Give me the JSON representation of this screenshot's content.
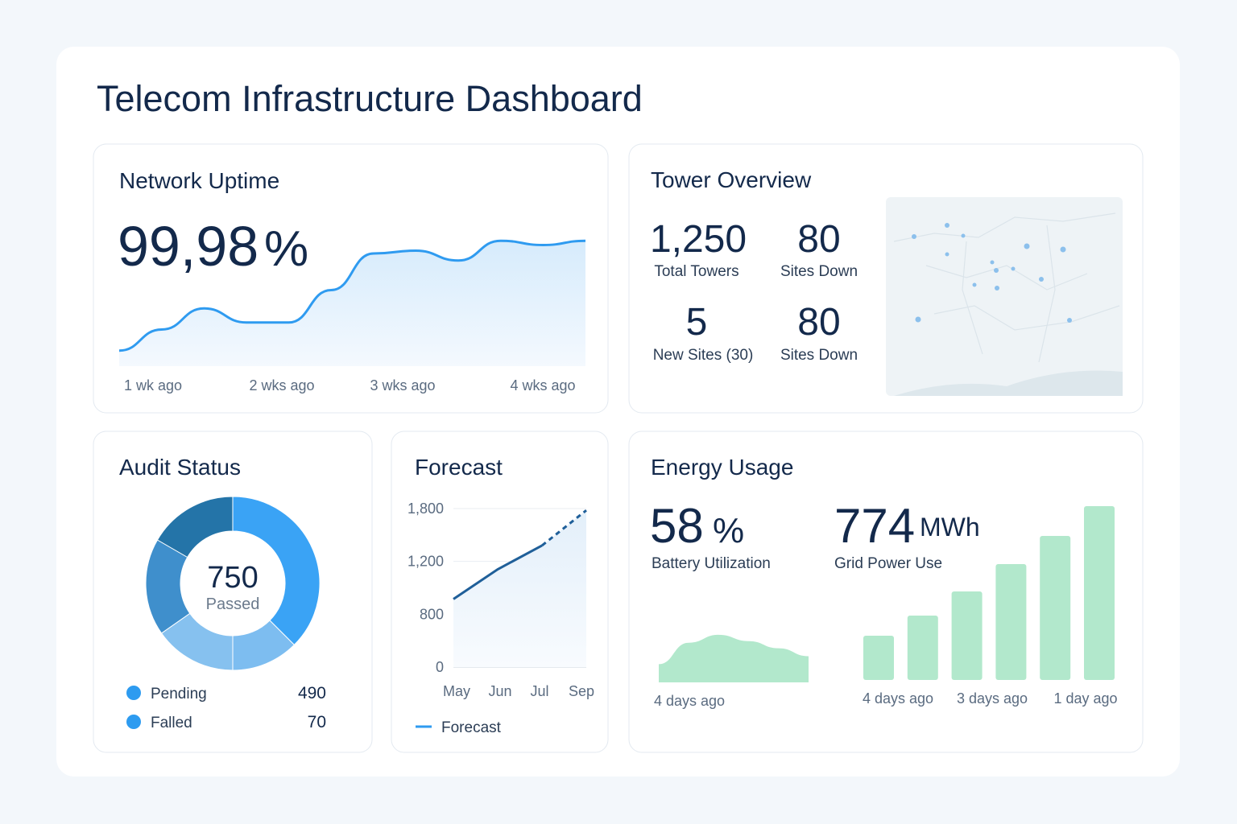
{
  "title": "Telecom Infrastructure Dashboard",
  "uptime": {
    "title": "Network Uptime",
    "value": "99,98",
    "unit": "%",
    "chart": {
      "type": "area",
      "values": [
        11,
        26,
        41,
        31,
        31,
        54,
        80,
        82,
        75,
        89,
        86,
        89
      ],
      "ylim": [
        0,
        100
      ],
      "x_labels": [
        "1 wk ago",
        "2 wks ago",
        "3 wks ago",
        "4 wks ago"
      ],
      "color": "#2f9bf0"
    }
  },
  "towers": {
    "title": "Tower Overview",
    "stats": [
      {
        "value": "1,250",
        "label": "Total Towers"
      },
      {
        "value": "80",
        "label": "Sites Down"
      },
      {
        "value": "5",
        "label": "New Sites (30)"
      },
      {
        "value": "80",
        "label": "Sites Down"
      }
    ]
  },
  "audit": {
    "title": "Audit Status",
    "center_value": "750",
    "center_label": "Passed",
    "legend": [
      {
        "label": "Pending",
        "value": "490"
      },
      {
        "label": "Falled",
        "value": "70"
      }
    ]
  },
  "forecast": {
    "title": "Forecast",
    "chart": {
      "type": "line",
      "categories": [
        "May",
        "Jun",
        "Jul",
        "Sep"
      ],
      "values": [
        915,
        1140,
        1380,
        1780
      ],
      "forecast_from": 2,
      "yticks": [
        0,
        800,
        {
          "value": 1200,
          "label": "1,200"
        },
        {
          "value": 1800,
          "label": "1,800"
        }
      ],
      "grid": true,
      "color": "#1f5f99",
      "legend": "Forecast"
    }
  },
  "energy": {
    "title": "Energy Usage",
    "battery": {
      "value": "58",
      "unit": "%",
      "label": "Battery Utilization"
    },
    "grid": {
      "value": "774",
      "unit": "MWh",
      "label": "Grid Power Use"
    },
    "area": {
      "type": "area",
      "values": [
        23,
        50,
        60,
        52,
        43,
        33
      ],
      "ylim": [
        0,
        70
      ],
      "x_labels": [
        "4 days ago"
      ],
      "color": "#b2e8cc"
    },
    "bars": {
      "type": "bar",
      "values": [
        55,
        80,
        110,
        144,
        179,
        216
      ],
      "ylim": [
        0,
        230
      ],
      "x_labels": [
        "4 days ago",
        "3 days ago",
        "1 day ago"
      ],
      "color": "#b2e8cc"
    }
  }
}
